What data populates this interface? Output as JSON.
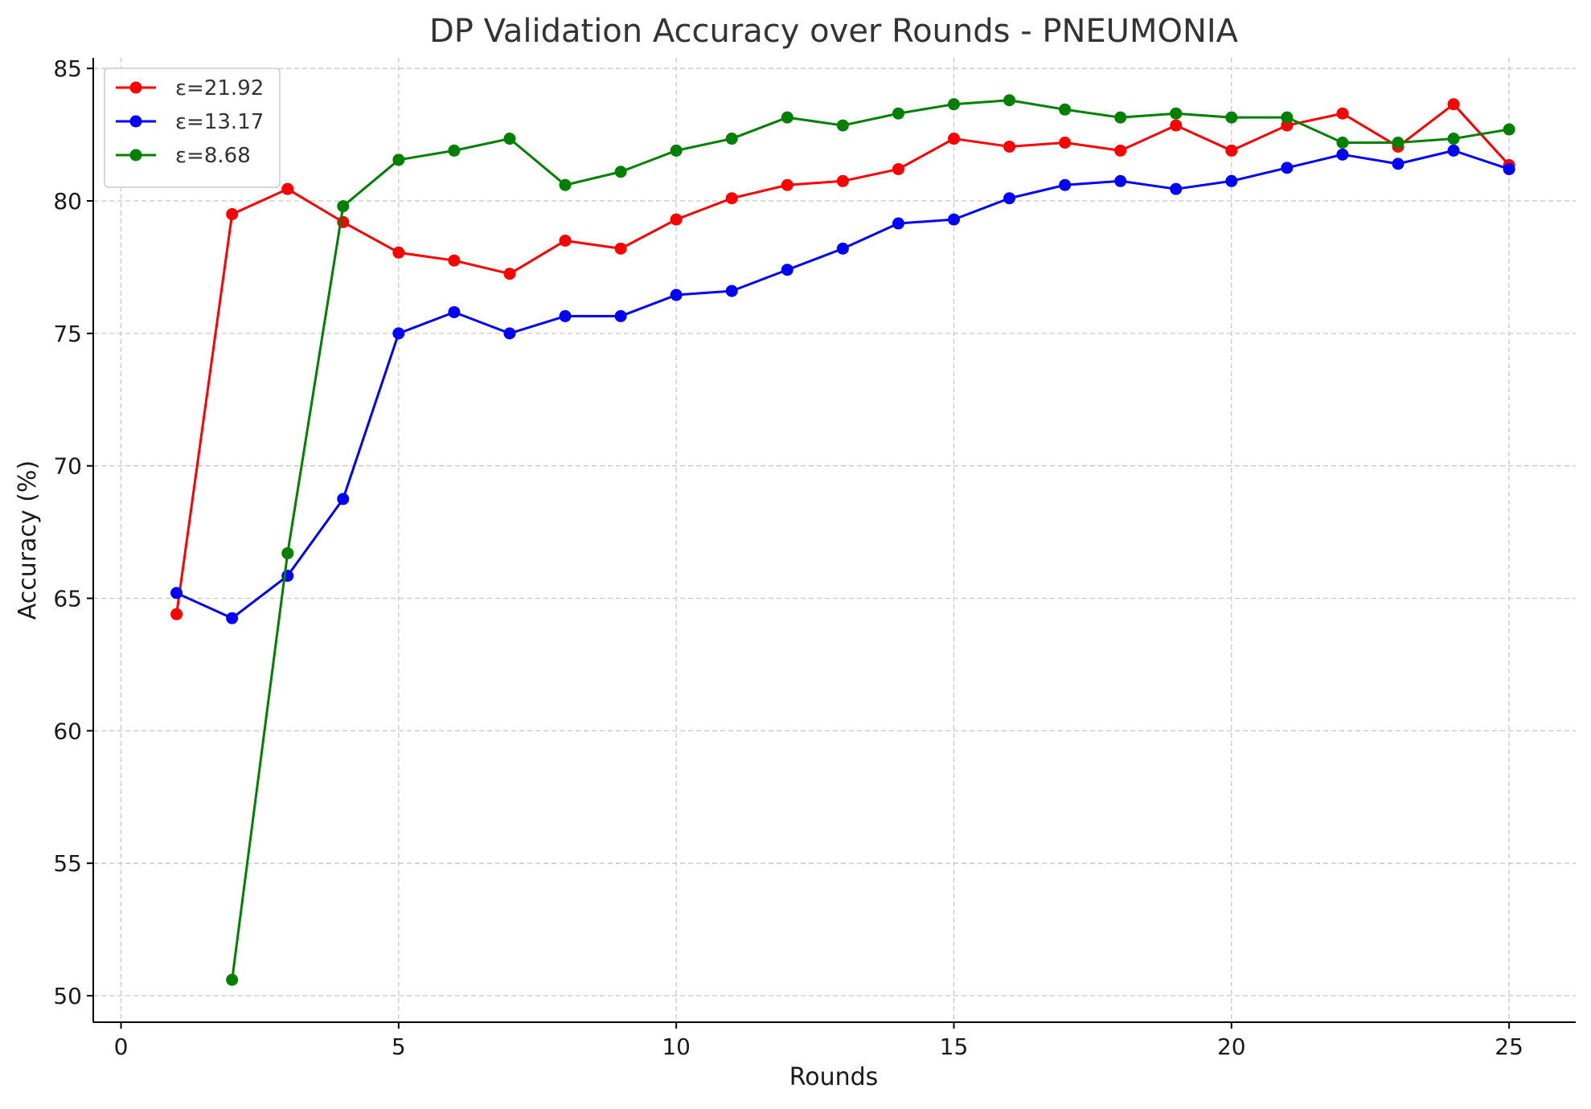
{
  "chart_data": {
    "type": "line",
    "title": "DP Validation Accuracy over Rounds - PNEUMONIA",
    "xlabel": "Rounds",
    "ylabel": "Accuracy (%)",
    "xlim": [
      -0.5,
      26.2
    ],
    "ylim": [
      49,
      85.4
    ],
    "xticks": [
      0,
      5,
      10,
      15,
      20,
      25
    ],
    "yticks": [
      50,
      55,
      60,
      65,
      70,
      75,
      80,
      85
    ],
    "grid": true,
    "legend_position": "top-left",
    "series": [
      {
        "name": "ε=21.92",
        "color": "#ff0000",
        "x": [
          1,
          2,
          3,
          4,
          5,
          6,
          7,
          8,
          9,
          10,
          11,
          12,
          13,
          14,
          15,
          16,
          17,
          18,
          19,
          20,
          21,
          22,
          23,
          24,
          25
        ],
        "y": [
          64.4,
          79.5,
          80.45,
          79.2,
          78.05,
          77.75,
          77.25,
          78.5,
          78.2,
          79.3,
          80.1,
          80.6,
          80.75,
          81.2,
          82.35,
          82.05,
          82.2,
          81.9,
          82.85,
          81.9,
          82.85,
          83.3,
          82.05,
          83.65,
          81.35
        ]
      },
      {
        "name": "ε=13.17",
        "color": "#0000ff",
        "x": [
          1,
          2,
          3,
          4,
          5,
          6,
          7,
          8,
          9,
          10,
          11,
          12,
          13,
          14,
          15,
          16,
          17,
          18,
          19,
          20,
          21,
          22,
          23,
          24,
          25
        ],
        "y": [
          65.2,
          64.25,
          65.85,
          68.75,
          75.0,
          75.8,
          75.0,
          75.65,
          75.65,
          76.45,
          76.6,
          77.4,
          78.2,
          79.15,
          79.3,
          80.1,
          80.6,
          80.75,
          80.45,
          80.75,
          81.25,
          81.75,
          81.4,
          81.9,
          81.2
        ]
      },
      {
        "name": "ε=8.68",
        "color": "#008000",
        "x": [
          2,
          3,
          4,
          5,
          6,
          7,
          8,
          9,
          10,
          11,
          12,
          13,
          14,
          15,
          16,
          17,
          18,
          19,
          20,
          21,
          22,
          23,
          24,
          25
        ],
        "y": [
          50.6,
          66.7,
          79.8,
          81.55,
          81.9,
          82.35,
          80.6,
          81.1,
          81.9,
          82.35,
          83.15,
          82.85,
          83.3,
          83.65,
          83.8,
          83.45,
          83.15,
          83.3,
          83.15,
          83.15,
          82.2,
          82.2,
          82.35,
          82.7
        ]
      }
    ]
  }
}
